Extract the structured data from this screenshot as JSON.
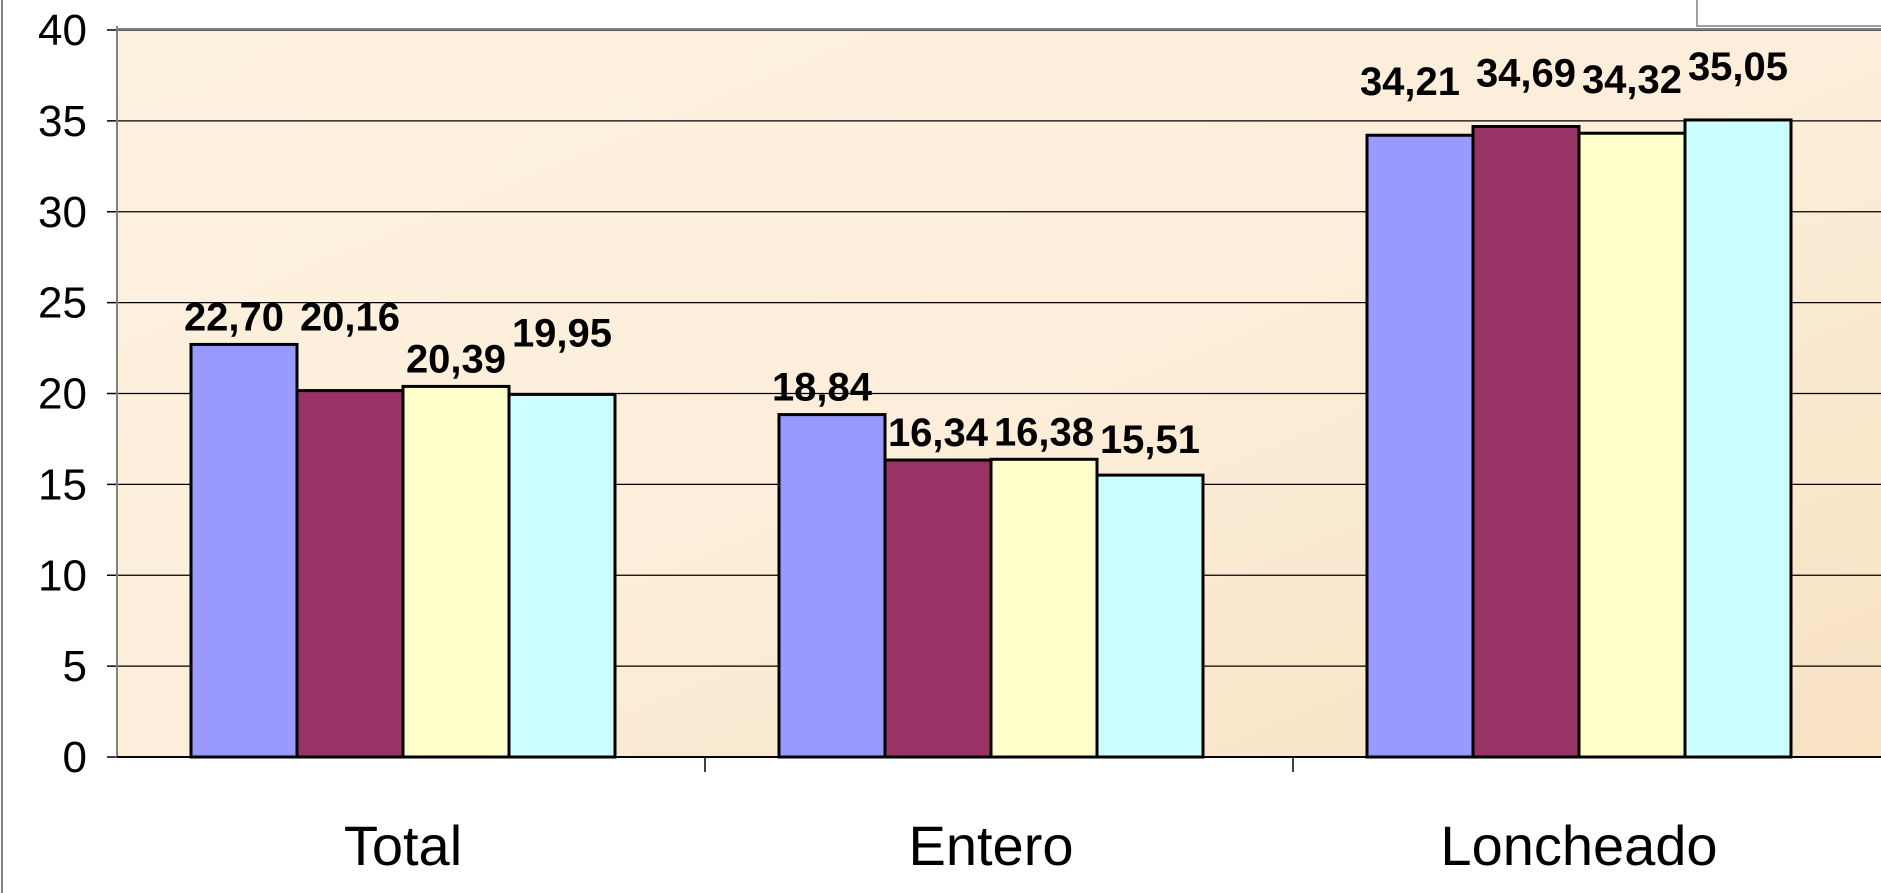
{
  "chart_data": {
    "type": "bar",
    "categories": [
      "Total",
      "Entero",
      "Loncheado"
    ],
    "series": [
      {
        "values": [
          22.7,
          18.84,
          34.21
        ],
        "labels": [
          "22,70",
          "18,84",
          "34,21"
        ],
        "color": "#9999FF"
      },
      {
        "values": [
          20.16,
          16.34,
          34.69
        ],
        "labels": [
          "20,16",
          "16,34",
          "34,69"
        ],
        "color": "#993366"
      },
      {
        "values": [
          20.39,
          16.38,
          34.32
        ],
        "labels": [
          "20,39",
          "16,38",
          "34,32"
        ],
        "color": "#FFFFCC"
      },
      {
        "values": [
          19.95,
          15.51,
          35.05
        ],
        "labels": [
          "19,95",
          "15,51",
          "35,05"
        ],
        "color": "#CCFFFF"
      }
    ],
    "yticks": [
      "0",
      "5",
      "10",
      "15",
      "20",
      "25",
      "30",
      "35",
      "40"
    ],
    "ylim": [
      0,
      40
    ],
    "grid": true,
    "legend": "none",
    "plot_background": "#FBEBD2"
  }
}
